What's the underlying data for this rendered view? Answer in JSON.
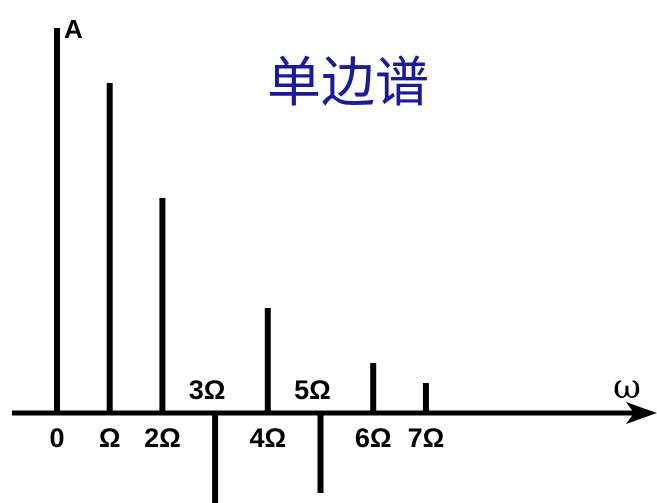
{
  "chart_data": {
    "type": "bar",
    "title": "单边谱",
    "ylabel": "A",
    "xlabel": "ω",
    "categories": [
      "0",
      "Ω",
      "2Ω",
      "3Ω",
      "4Ω",
      "5Ω",
      "6Ω",
      "7Ω"
    ],
    "x": [
      0,
      1,
      2,
      3,
      4,
      5,
      6,
      7
    ],
    "values": [
      3.85,
      3.3,
      2.15,
      -0.9,
      1.05,
      -0.8,
      0.5,
      0.3
    ],
    "ylim": [
      -0.9,
      3.85
    ],
    "grid": false,
    "legend": "none"
  }
}
